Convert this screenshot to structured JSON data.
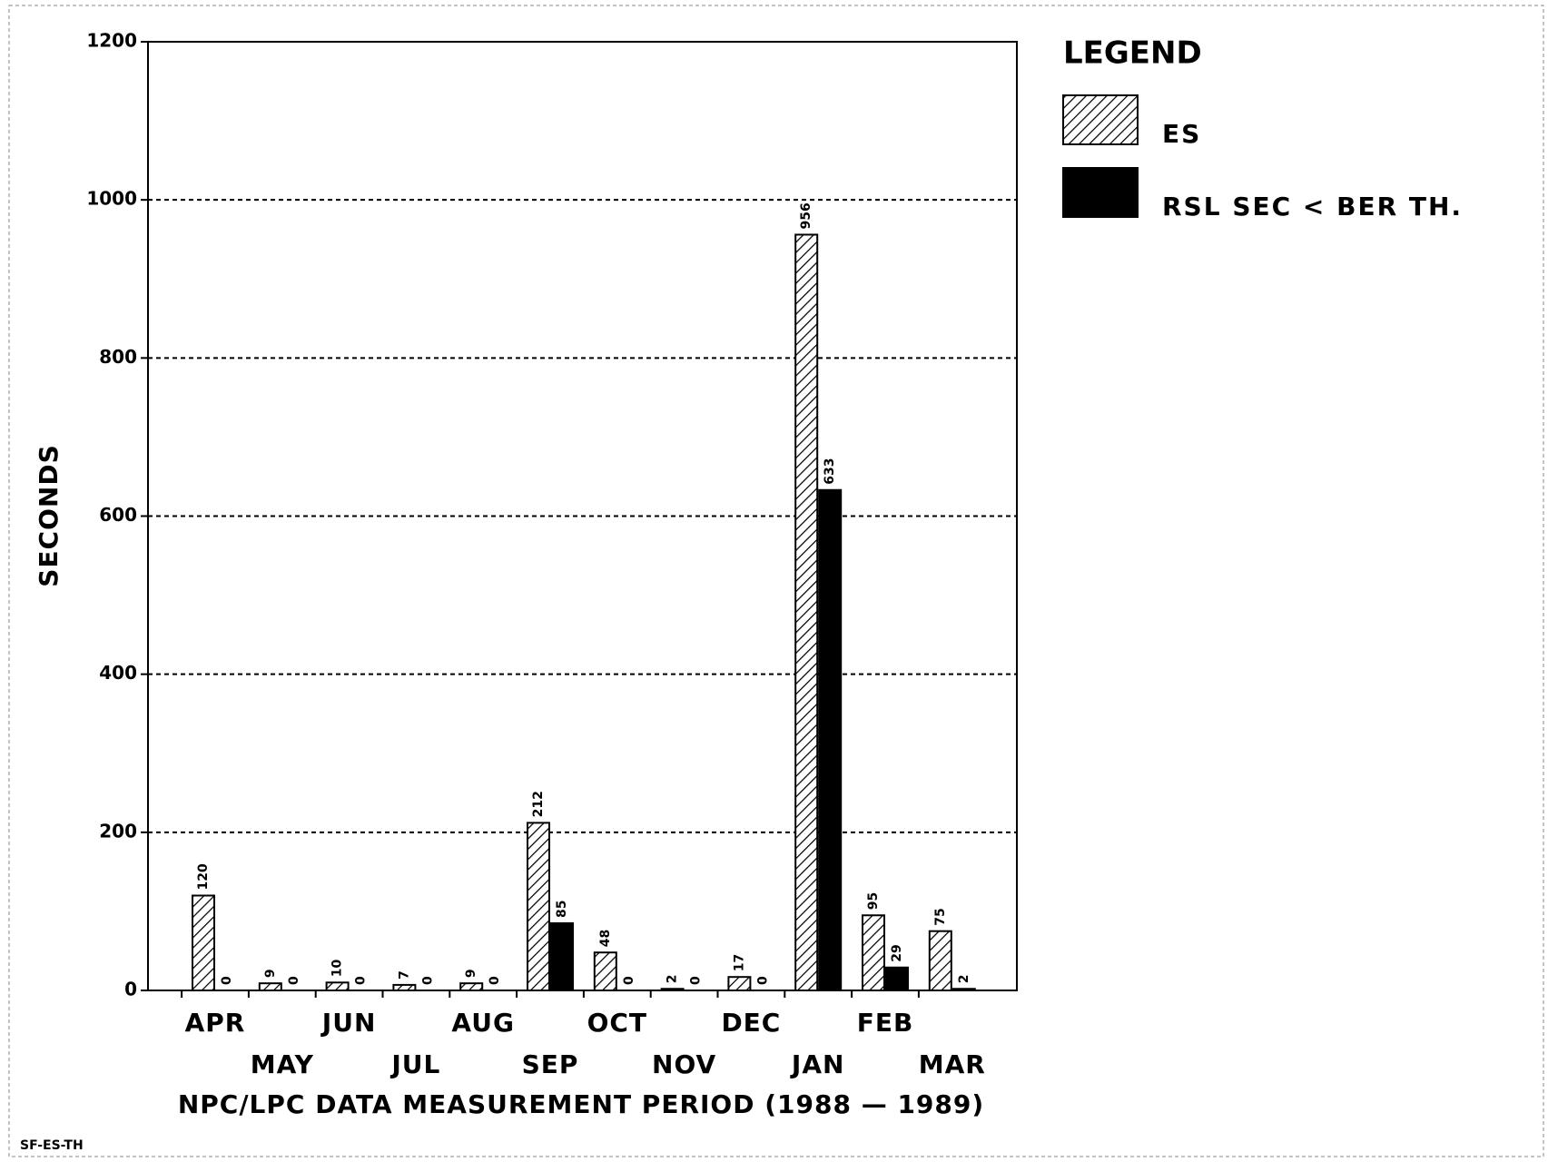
{
  "chart_data": {
    "type": "bar",
    "y_label": "SECONDS",
    "x_label": "NPC/LPC DATA MEASUREMENT PERIOD (1988 — 1989)",
    "footnote": "SF-ES-TH",
    "legend_title": "LEGEND",
    "categories": [
      "APR",
      "MAY",
      "JUN",
      "JUL",
      "AUG",
      "SEP",
      "OCT",
      "NOV",
      "DEC",
      "JAN",
      "FEB",
      "MAR"
    ],
    "series": [
      {
        "name": "ES",
        "color": "#000000",
        "pattern": "hatch",
        "values": [
          120,
          9,
          10,
          7,
          9,
          212,
          48,
          2,
          17,
          956,
          95,
          75
        ]
      },
      {
        "name": "RSL SEC < BER TH.",
        "color": "#000000",
        "pattern": "solid",
        "values": [
          0,
          0,
          0,
          0,
          0,
          85,
          0,
          0,
          0,
          633,
          29,
          2
        ]
      }
    ],
    "ylim": [
      0,
      1200
    ],
    "yticks": [
      0,
      200,
      400,
      600,
      800,
      1000,
      1200
    ],
    "grid": true
  }
}
